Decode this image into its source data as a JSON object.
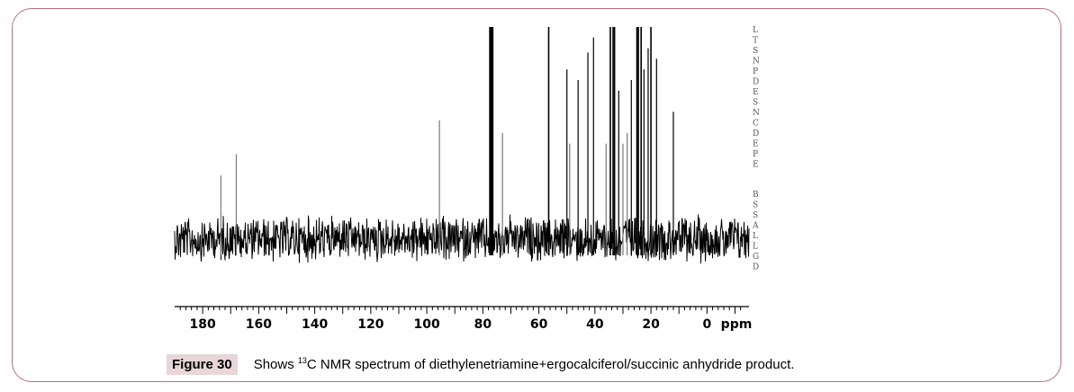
{
  "chart_data": {
    "type": "line",
    "title": "",
    "xlabel": "ppm",
    "ylabel": "",
    "xlim": [
      190,
      -15
    ],
    "x_reversed": true,
    "xticks": [
      180,
      160,
      140,
      120,
      100,
      80,
      60,
      40,
      20,
      0
    ],
    "noise_baseline": true,
    "peaks": [
      {
        "ppm": 173.5,
        "intensity": 0.3
      },
      {
        "ppm": 168.0,
        "intensity": 0.4
      },
      {
        "ppm": 95.5,
        "intensity": 0.56
      },
      {
        "ppm": 77.5,
        "intensity": 1.0
      },
      {
        "ppm": 77.0,
        "intensity": 1.0
      },
      {
        "ppm": 76.5,
        "intensity": 1.0
      },
      {
        "ppm": 73.0,
        "intensity": 0.5
      },
      {
        "ppm": 56.5,
        "intensity": 1.0
      },
      {
        "ppm": 50.0,
        "intensity": 0.8
      },
      {
        "ppm": 49.0,
        "intensity": 0.45
      },
      {
        "ppm": 46.0,
        "intensity": 0.75
      },
      {
        "ppm": 42.5,
        "intensity": 0.88
      },
      {
        "ppm": 40.5,
        "intensity": 0.95
      },
      {
        "ppm": 36.0,
        "intensity": 0.45
      },
      {
        "ppm": 34.5,
        "intensity": 1.0
      },
      {
        "ppm": 33.5,
        "intensity": 1.0
      },
      {
        "ppm": 33.0,
        "intensity": 1.0
      },
      {
        "ppm": 31.5,
        "intensity": 0.7
      },
      {
        "ppm": 30.0,
        "intensity": 0.45
      },
      {
        "ppm": 28.5,
        "intensity": 0.5
      },
      {
        "ppm": 27.0,
        "intensity": 0.75
      },
      {
        "ppm": 25.0,
        "intensity": 1.0
      },
      {
        "ppm": 24.5,
        "intensity": 1.0
      },
      {
        "ppm": 23.5,
        "intensity": 1.0
      },
      {
        "ppm": 22.5,
        "intensity": 0.8
      },
      {
        "ppm": 21.0,
        "intensity": 0.9
      },
      {
        "ppm": 20.0,
        "intensity": 1.0
      },
      {
        "ppm": 18.0,
        "intensity": 0.85
      },
      {
        "ppm": 12.0,
        "intensity": 0.6
      }
    ],
    "color": "#000000"
  },
  "caption": {
    "label": "Figure 30",
    "text_prefix": "Shows ",
    "superscript": "13",
    "text_suffix": "C NMR spectrum of diethylenetriamine+ergocalciferol/succinic anhydride product."
  },
  "param_list": [
    "L",
    "T",
    "S",
    "N",
    "P",
    "D",
    "E",
    "S",
    "N",
    "C",
    "D",
    "E",
    "P",
    "E",
    "B",
    "S",
    "S",
    "A",
    "L",
    "L",
    "G",
    "D"
  ],
  "colors": {
    "frame": "#b8707c",
    "label_bg": "#e8d6d9"
  }
}
